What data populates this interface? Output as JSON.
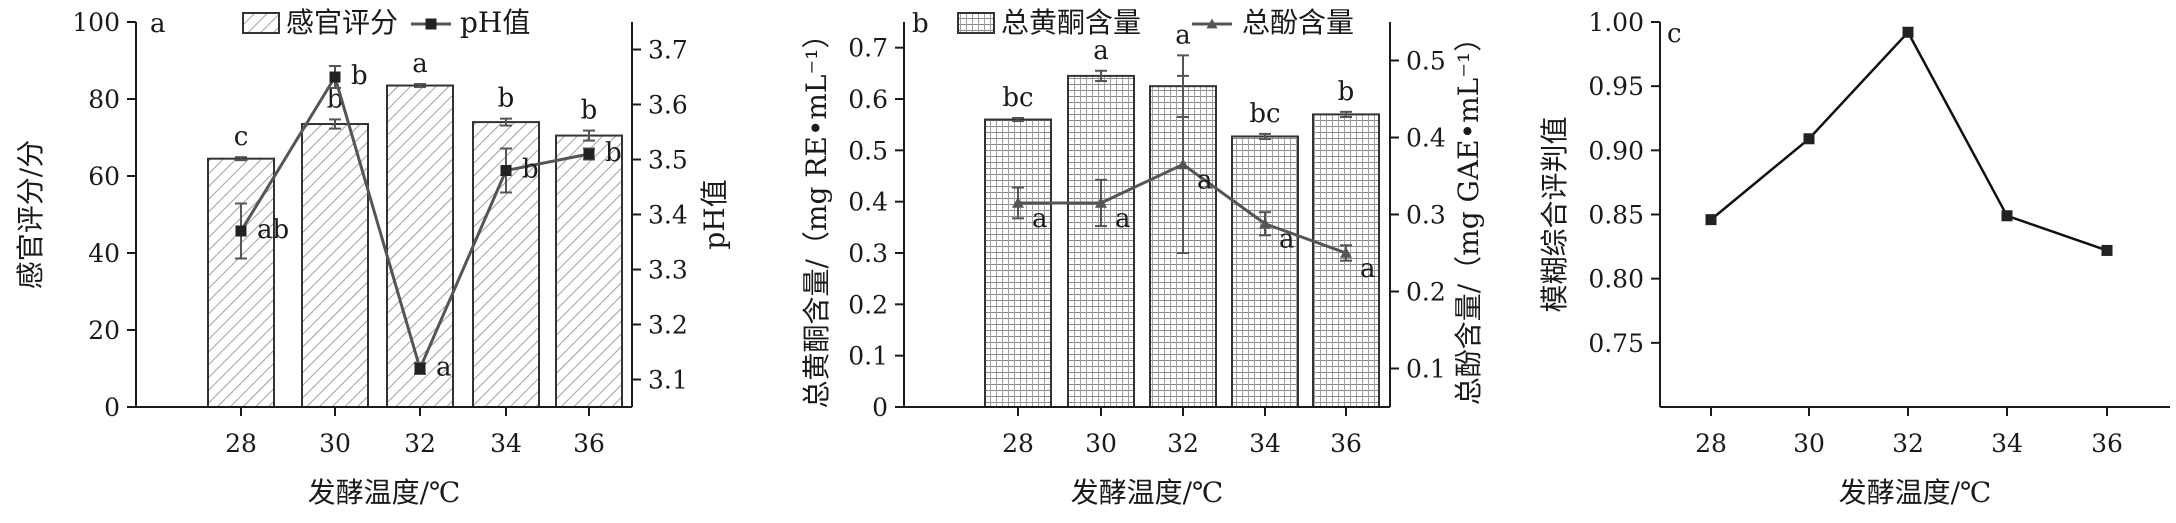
{
  "colors": {
    "bar_fill": "#ffffff",
    "line": "#555555",
    "axis": "#1a1a1a"
  },
  "chart_data": [
    {
      "type": "bar",
      "panel_tag": "a",
      "legend": [
        "感官评分",
        "pH值"
      ],
      "xlabel": "发酵温度/℃",
      "ylabel": "感官评分/分",
      "y2label": "pH值",
      "categories": [
        "28",
        "30",
        "32",
        "34",
        "36"
      ],
      "ylim": [
        0,
        100
      ],
      "yticks": [
        "0",
        "20",
        "40",
        "60",
        "80",
        "100"
      ],
      "y2lim": [
        3.05,
        3.75
      ],
      "y2ticks": [
        "3.1",
        "3.2",
        "3.3",
        "3.4",
        "3.5",
        "3.6",
        "3.7"
      ],
      "series": [
        {
          "name": "感官评分",
          "kind": "bar",
          "axis": "left",
          "pattern": "diag",
          "values": [
            64.5,
            73.5,
            83.5,
            74,
            70.5
          ],
          "errors": [
            0.4,
            1.2,
            0.4,
            0.9,
            1.3
          ],
          "labels": [
            "c",
            "b",
            "a",
            "b",
            "b"
          ]
        },
        {
          "name": "pH值",
          "kind": "line",
          "axis": "right",
          "marker": "square",
          "values": [
            3.37,
            3.65,
            3.12,
            3.48,
            3.51
          ],
          "errors": [
            0.05,
            0.02,
            0.01,
            0.04,
            0.01
          ],
          "labels": [
            "ab",
            "b",
            "a",
            "b",
            "b"
          ]
        }
      ]
    },
    {
      "type": "bar",
      "panel_tag": "b",
      "legend": [
        "总黄酮含量",
        "总酚含量"
      ],
      "xlabel": "发酵温度/℃",
      "ylabel": "总黄酮含量/（mg RE•mL⁻¹）",
      "y2label": "总酚含量/（mg GAE•mL⁻¹）",
      "categories": [
        "28",
        "30",
        "32",
        "34",
        "36"
      ],
      "ylim": [
        0,
        0.75
      ],
      "yticks": [
        "0",
        "0.1",
        "0.2",
        "0.3",
        "0.4",
        "0.5",
        "0.6",
        "0.7"
      ],
      "y2lim": [
        0.05,
        0.55
      ],
      "y2ticks": [
        "0.1",
        "0.2",
        "0.3",
        "0.4",
        "0.5"
      ],
      "series": [
        {
          "name": "总黄酮含量",
          "kind": "bar",
          "axis": "left",
          "pattern": "grid",
          "values": [
            0.56,
            0.645,
            0.625,
            0.527,
            0.57
          ],
          "errors": [
            0.003,
            0.01,
            0.06,
            0.005,
            0.005
          ],
          "labels": [
            "bc",
            "a",
            "a",
            "bc",
            "b"
          ]
        },
        {
          "name": "总酚含量",
          "kind": "line",
          "axis": "right",
          "marker": "triangle",
          "values": [
            0.315,
            0.315,
            0.365,
            0.288,
            0.25
          ],
          "errors": [
            0.02,
            0.03,
            0.115,
            0.015,
            0.01
          ],
          "labels": [
            "a",
            "a",
            "a",
            "a",
            "a"
          ]
        }
      ]
    },
    {
      "type": "line",
      "panel_tag": "c",
      "xlabel": "发酵温度/℃",
      "ylabel": "模糊综合评判值",
      "categories": [
        "28",
        "30",
        "32",
        "34",
        "36"
      ],
      "ylim": [
        0.7,
        1.0
      ],
      "yticks": [
        "0.75",
        "0.80",
        "0.85",
        "0.90",
        "0.95",
        "1.00"
      ],
      "series": [
        {
          "kind": "line",
          "marker": "square",
          "values": [
            0.846,
            0.909,
            0.992,
            0.849,
            0.822
          ]
        }
      ]
    }
  ]
}
